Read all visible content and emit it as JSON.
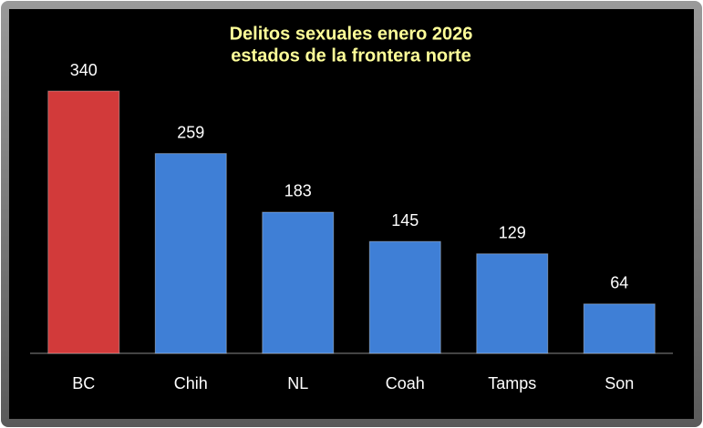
{
  "chart_data": {
    "type": "bar",
    "title": [
      "Delitos sexuales enero 2026",
      "estados de la frontera norte"
    ],
    "categories": [
      "BC",
      "Chih",
      "NL",
      "Coah",
      "Tamps",
      "Son"
    ],
    "values": [
      340,
      259,
      183,
      145,
      129,
      64
    ],
    "colors": [
      "#d23a3a",
      "#3f7fd6",
      "#3f7fd6",
      "#3f7fd6",
      "#3f7fd6",
      "#3f7fd6"
    ]
  }
}
